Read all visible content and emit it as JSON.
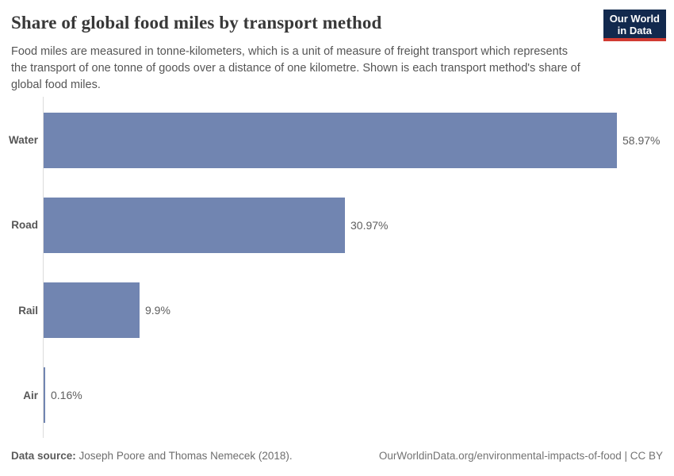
{
  "header": {
    "title": "Share of global food miles by transport method",
    "subtitle": "Food miles are measured in tonne-kilometers, which is a unit of measure of freight transport which represents the transport of one tonne of goods over a distance of one kilometre. Shown is each transport method's share of global food miles.",
    "logo": {
      "line1": "Our World",
      "line2": "in Data"
    }
  },
  "chart_data": {
    "type": "bar",
    "orientation": "horizontal",
    "title": "Share of global food miles by transport method",
    "categories": [
      "Water",
      "Road",
      "Rail",
      "Air"
    ],
    "values": [
      58.97,
      30.97,
      9.9,
      0.16
    ],
    "value_labels": [
      "58.97%",
      "30.97%",
      "9.9%",
      "0.16%"
    ],
    "xlim": [
      0,
      60
    ],
    "grid": false,
    "legend": false,
    "bar_color": "#7185b1",
    "axis_line_color": "#dcdcdc"
  },
  "footer": {
    "source_label": "Data source:",
    "source_text": " Joseph Poore and Thomas Nemecek (2018).",
    "link_text": "OurWorldinData.org/environmental-impacts-of-food | CC BY"
  }
}
